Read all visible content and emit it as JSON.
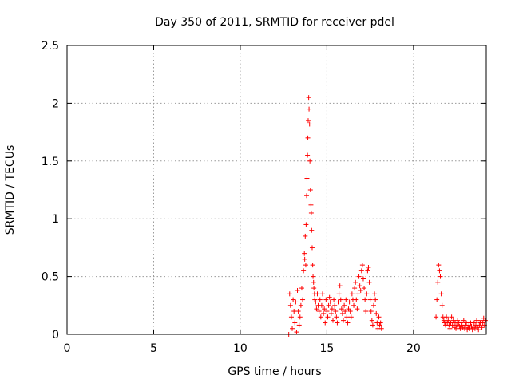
{
  "chart_data": {
    "type": "scatter",
    "title": "Day 350 of 2011, SRMTID for receiver pdel",
    "xlabel": "GPS time / hours",
    "ylabel": "SRMTID / TECUs",
    "xlim": [
      0,
      24.2
    ],
    "ylim": [
      0,
      2.5
    ],
    "x_ticks": [
      0,
      5,
      10,
      15,
      20
    ],
    "y_ticks": [
      0,
      0.5,
      1,
      1.5,
      2,
      2.5
    ],
    "x_tick_labels": [
      "0",
      "5",
      "10",
      "15",
      "20"
    ],
    "y_tick_labels": [
      "0",
      "0.5",
      "1",
      "1.5",
      "2",
      "2.5"
    ],
    "grid": true,
    "marker": "+",
    "series": [
      {
        "name": "SRMTID",
        "color": "#ff0000",
        "x": [
          12.8,
          12.85,
          12.9,
          12.95,
          13.0,
          13.05,
          13.1,
          13.15,
          13.2,
          13.25,
          13.3,
          13.35,
          13.4,
          13.45,
          13.5,
          13.55,
          13.6,
          13.65,
          13.7,
          13.72,
          13.75,
          13.78,
          13.8,
          13.83,
          13.85,
          13.88,
          13.9,
          13.92,
          13.95,
          13.97,
          14.0,
          14.02,
          14.05,
          14.08,
          14.1,
          14.12,
          14.15,
          14.18,
          14.2,
          14.23,
          14.25,
          14.28,
          14.3,
          14.35,
          14.4,
          14.45,
          14.5,
          14.55,
          14.6,
          14.65,
          14.7,
          14.75,
          14.8,
          14.85,
          14.9,
          14.95,
          15.0,
          15.05,
          15.1,
          15.15,
          15.2,
          15.25,
          15.3,
          15.35,
          15.4,
          15.45,
          15.5,
          15.55,
          15.6,
          15.65,
          15.7,
          15.75,
          15.8,
          15.85,
          15.9,
          15.95,
          16.0,
          16.05,
          16.1,
          16.15,
          16.2,
          16.25,
          16.3,
          16.35,
          16.4,
          16.45,
          16.5,
          16.55,
          16.6,
          16.65,
          16.7,
          16.75,
          16.8,
          16.85,
          16.9,
          16.95,
          17.0,
          17.05,
          17.1,
          17.15,
          17.2,
          17.25,
          17.3,
          17.35,
          17.4,
          17.45,
          17.5,
          17.55,
          17.6,
          17.65,
          17.7,
          17.75,
          17.8,
          17.85,
          17.9,
          17.95,
          18.0,
          18.05,
          18.1,
          18.15,
          21.3,
          21.35,
          21.4,
          21.45,
          21.5,
          21.55,
          21.6,
          21.65,
          21.7,
          21.75,
          21.8,
          21.85,
          21.9,
          21.95,
          22.0,
          22.05,
          22.1,
          22.15,
          22.2,
          22.25,
          22.3,
          22.35,
          22.4,
          22.45,
          22.5,
          22.55,
          22.6,
          22.65,
          22.7,
          22.75,
          22.8,
          22.85,
          22.9,
          22.95,
          23.0,
          23.05,
          23.1,
          23.15,
          23.2,
          23.25,
          23.3,
          23.35,
          23.4,
          23.45,
          23.5,
          23.55,
          23.6,
          23.65,
          23.7,
          23.75,
          23.8,
          23.85,
          23.9,
          23.95,
          24.0,
          24.05,
          24.1,
          24.15
        ],
        "y": [
          0.0,
          0.35,
          0.25,
          0.15,
          0.05,
          0.3,
          0.2,
          0.1,
          0.28,
          0.02,
          0.38,
          0.2,
          0.08,
          0.15,
          0.25,
          0.4,
          0.3,
          0.55,
          0.7,
          0.65,
          0.85,
          0.6,
          0.95,
          1.2,
          1.35,
          1.55,
          1.7,
          1.85,
          2.05,
          1.95,
          1.82,
          1.5,
          1.25,
          1.12,
          1.05,
          0.9,
          0.75,
          0.6,
          0.5,
          0.45,
          0.4,
          0.35,
          0.3,
          0.28,
          0.22,
          0.35,
          0.25,
          0.2,
          0.3,
          0.15,
          0.25,
          0.35,
          0.18,
          0.22,
          0.1,
          0.3,
          0.2,
          0.15,
          0.25,
          0.32,
          0.28,
          0.18,
          0.22,
          0.12,
          0.3,
          0.25,
          0.2,
          0.15,
          0.1,
          0.28,
          0.35,
          0.42,
          0.3,
          0.22,
          0.18,
          0.12,
          0.25,
          0.2,
          0.3,
          0.15,
          0.1,
          0.22,
          0.28,
          0.2,
          0.15,
          0.35,
          0.3,
          0.25,
          0.4,
          0.45,
          0.3,
          0.22,
          0.35,
          0.5,
          0.42,
          0.38,
          0.55,
          0.6,
          0.48,
          0.4,
          0.3,
          0.2,
          0.35,
          0.55,
          0.58,
          0.45,
          0.3,
          0.2,
          0.12,
          0.08,
          0.25,
          0.35,
          0.3,
          0.18,
          0.1,
          0.05,
          0.15,
          0.08,
          0.1,
          0.05,
          0.15,
          0.3,
          0.45,
          0.6,
          0.55,
          0.5,
          0.35,
          0.25,
          0.15,
          0.12,
          0.1,
          0.08,
          0.15,
          0.1,
          0.12,
          0.08,
          0.05,
          0.1,
          0.15,
          0.08,
          0.12,
          0.06,
          0.1,
          0.05,
          0.08,
          0.12,
          0.1,
          0.07,
          0.05,
          0.1,
          0.08,
          0.06,
          0.12,
          0.05,
          0.08,
          0.1,
          0.04,
          0.06,
          0.08,
          0.05,
          0.1,
          0.07,
          0.04,
          0.06,
          0.1,
          0.05,
          0.08,
          0.12,
          0.06,
          0.04,
          0.08,
          0.1,
          0.12,
          0.06,
          0.1,
          0.14,
          0.08,
          0.12
        ]
      }
    ]
  }
}
